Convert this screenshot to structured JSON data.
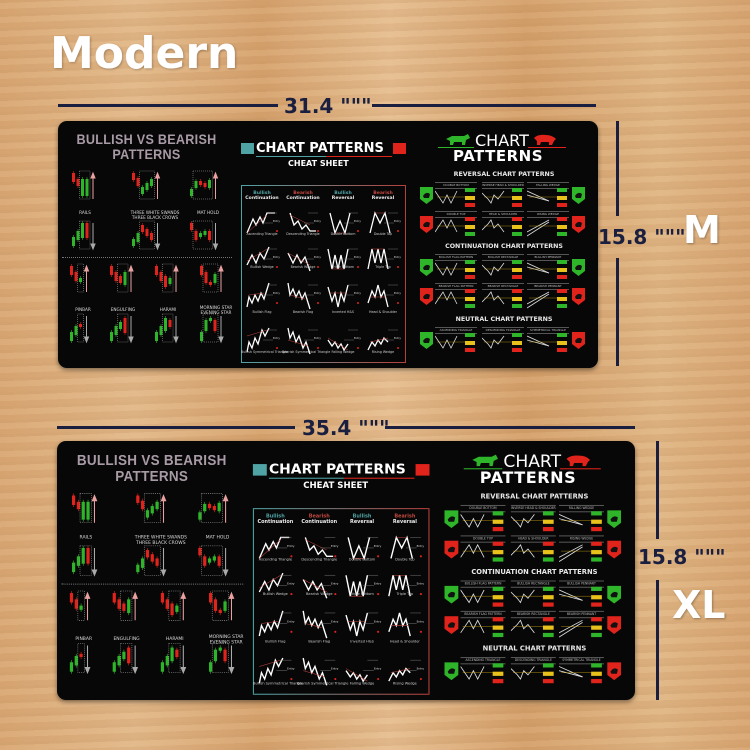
{
  "heading": "Modern",
  "colors": {
    "pad": "#070707",
    "dimension_line": "#1a1f3f",
    "bull": "#2fb52a",
    "bear": "#e0231b",
    "teal": "#4fa3a5",
    "title_mauve": "#a99ba6",
    "label_yellow": "#e8c21a"
  },
  "pads": [
    {
      "size_label": "M",
      "width_label": "31.4 \"\"\"",
      "height_label": "15.8 \"\"\""
    },
    {
      "size_label": "XL",
      "width_label": "35.4 \"\"\"",
      "height_label": "15.8 \"\"\""
    }
  ],
  "left_panel": {
    "title_line1": "BULLISH VS BEARISH",
    "title_line2": "PATTERNS",
    "patterns": [
      {
        "label": "RAILS"
      },
      {
        "label": "THREE WHITE SWANDS",
        "label2": "THREE BLACK CROWS"
      },
      {
        "label": "MAT HOLD"
      },
      {
        "label": "PINBAR"
      },
      {
        "label": "ENGULFING"
      },
      {
        "label": "HARAMI"
      },
      {
        "label": "MORNING STAR",
        "label2": "EVENING STAR"
      }
    ]
  },
  "cheat_sheet": {
    "title": "CHART PATTERNS",
    "subtitle": "CHEAT SHEET",
    "columns": [
      {
        "line1": "Bullish",
        "line2": "Continuation"
      },
      {
        "line1": "Bearish",
        "line2": "Continuation"
      },
      {
        "line1": "Bullish",
        "line2": "Reversal"
      },
      {
        "line1": "Bearish",
        "line2": "Reversal"
      }
    ],
    "rows": [
      [
        "Ascending Triangle",
        "Descending Triangle",
        "Double Bottom",
        "Double Top"
      ],
      [
        "Bullish Wedge",
        "Bearish Wedge",
        "Triple Bottom",
        "Triple Top"
      ],
      [
        "Bullish Flag",
        "Bearish Flag",
        "Inverted H&S",
        "Head & Shoulder"
      ],
      [
        "Bullish Symmetrical Triangle",
        "Bearish Symmetrical Triangle",
        "Falling Wedge",
        "Rising Wedge"
      ]
    ],
    "entry_label": "Entry"
  },
  "right_panel": {
    "title1": "CHART",
    "title2": "PATTERNS",
    "sections": [
      {
        "title": "REVERSAL CHART PATTERNS",
        "rows": [
          [
            "DOUBLE BOTTOM",
            "INVERSE HEAD & SHOULDER",
            "FALLING WEDGE"
          ],
          [
            "DOUBLE TOP",
            "HEAD & SHOULDER",
            "RISING WEDGE"
          ]
        ]
      },
      {
        "title": "CONTINUATION CHART PATTERNS",
        "rows": [
          [
            "BULLISH FLAG PATTERN",
            "BULLISH RECTANGLE",
            "BULLISH PENNANT"
          ],
          [
            "BEARISH FLAG PATTERN",
            "BEARISH RECTANGLE",
            "BEARISH PENNANT"
          ]
        ]
      },
      {
        "title": "NEUTRAL CHART PATTERNS",
        "rows": [
          [
            "ASCENDING TRIANGLE",
            "DESCENDING TRIANGLE",
            "SYMMETRICAL TRIANGLE"
          ]
        ]
      }
    ]
  }
}
